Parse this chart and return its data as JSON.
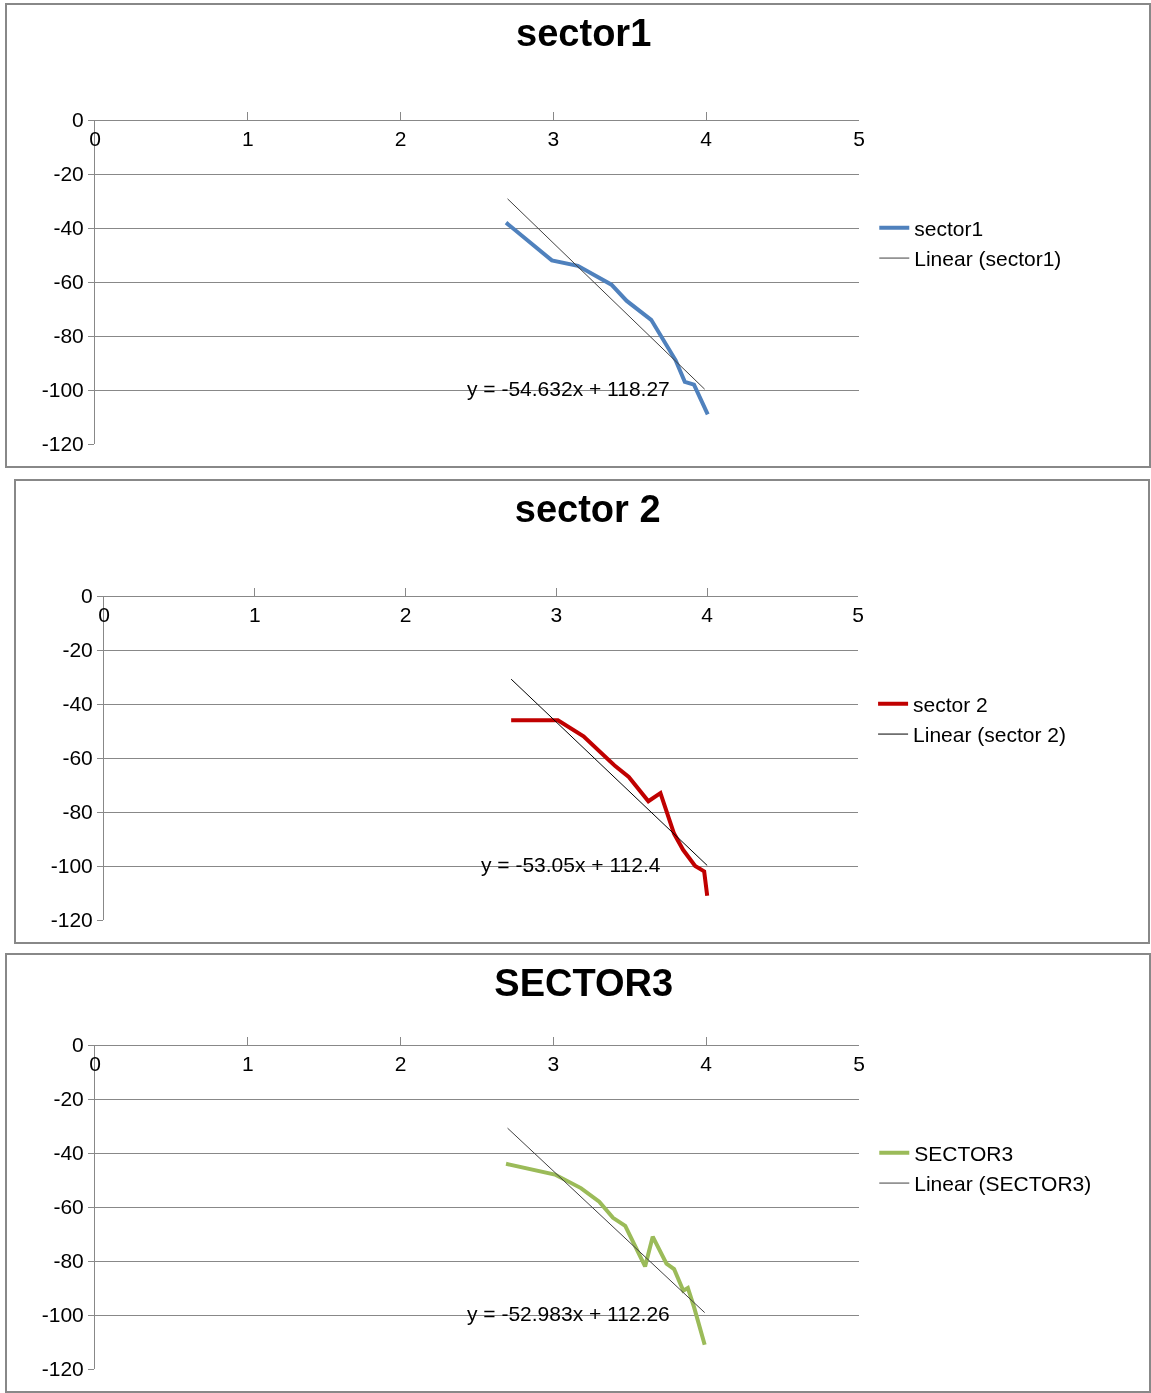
{
  "chart_data": [
    {
      "type": "line",
      "title": "sector1",
      "xlim": [
        0,
        5
      ],
      "xticks": [
        0,
        1,
        2,
        3,
        4,
        5
      ],
      "ylim": [
        -120,
        0
      ],
      "yticks": [
        -120,
        -100,
        -80,
        -60,
        -40,
        -20,
        0
      ],
      "grid": "y",
      "legend": "right",
      "marker": "none",
      "line_style": "solid",
      "annotations": [
        "y = -54.632x + 118.27"
      ],
      "series": [
        {
          "name": "sector1",
          "color": "#4f81bd",
          "x": [
            2.69,
            2.99,
            3.16,
            3.38,
            3.48,
            3.64,
            3.8,
            3.86,
            3.92,
            4.01
          ],
          "values": [
            -38,
            -52,
            -54,
            -61,
            -67,
            -74,
            -89,
            -97,
            -98,
            -109
          ]
        },
        {
          "name": "Linear (sector1)",
          "type": "line",
          "color": "#404040",
          "x": [
            2.7,
            3.99
          ],
          "values": [
            -29.2,
            -99.7
          ]
        }
      ]
    },
    {
      "type": "line",
      "title": "sector 2",
      "xlim": [
        0,
        5
      ],
      "xticks": [
        0,
        1,
        2,
        3,
        4,
        5
      ],
      "ylim": [
        -120,
        0
      ],
      "yticks": [
        -120,
        -100,
        -80,
        -60,
        -40,
        -20,
        0
      ],
      "grid": "y",
      "legend": "right",
      "marker": "none",
      "line_style": "solid",
      "annotations": [
        "y = -53.05x + 112.4"
      ],
      "series": [
        {
          "name": "sector 2",
          "color": "#c00000",
          "x": [
            2.7,
            3.01,
            3.18,
            3.39,
            3.48,
            3.61,
            3.69,
            3.78,
            3.84,
            3.92,
            3.98,
            4.0
          ],
          "values": [
            -46,
            -46,
            -52,
            -63,
            -67,
            -76,
            -73,
            -88,
            -94,
            -100,
            -102,
            -111
          ]
        },
        {
          "name": "Linear (sector 2)",
          "type": "line",
          "color": "#000000",
          "x": [
            2.7,
            4.0
          ],
          "values": [
            -30.8,
            -99.8
          ]
        }
      ]
    },
    {
      "type": "line",
      "title": "SECTOR3",
      "xlim": [
        0,
        5
      ],
      "xticks": [
        0,
        1,
        2,
        3,
        4,
        5
      ],
      "ylim": [
        -120,
        0
      ],
      "yticks": [
        -120,
        -100,
        -80,
        -60,
        -40,
        -20,
        0
      ],
      "grid": "y",
      "legend": "right",
      "marker": "none",
      "line_style": "solid",
      "annotations": [
        "y = -52.983x + 112.26"
      ],
      "series": [
        {
          "name": "SECTOR3",
          "color": "#9bbb59",
          "x": [
            2.69,
            3.01,
            3.18,
            3.3,
            3.39,
            3.47,
            3.6,
            3.65,
            3.74,
            3.79,
            3.85,
            3.88,
            3.92,
            3.99
          ],
          "values": [
            -44,
            -48,
            -53,
            -58,
            -64,
            -67,
            -82,
            -71,
            -81,
            -83,
            -91,
            -90,
            -97,
            -111
          ]
        },
        {
          "name": "Linear (SECTOR3)",
          "type": "line",
          "color": "#404040",
          "x": [
            2.7,
            3.99
          ],
          "values": [
            -30.8,
            -99.1
          ]
        }
      ]
    }
  ]
}
